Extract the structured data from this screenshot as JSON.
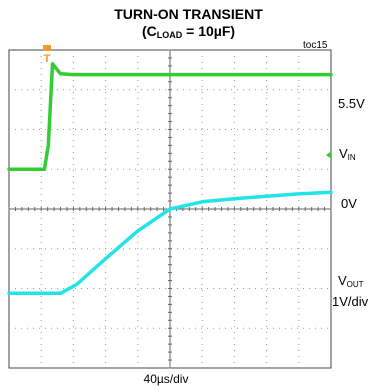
{
  "chart_data": {
    "type": "line",
    "title": "TURN-ON TRANSIENT",
    "subtitle_prefix": "(C",
    "subtitle_sub": "LOAD",
    "subtitle_suffix": " = 10µF)",
    "figure_id": "toc15",
    "time_per_div": "40µs/div",
    "x_divisions": 10,
    "y_divisions": 8,
    "grid": true,
    "trigger_marker": "T",
    "labels": {
      "vin_level": "5.5V",
      "vin_name_main": "V",
      "vin_name_sub": "IN",
      "zero_level": "0V",
      "vout_name_main": "V",
      "vout_name_sub": "OUT",
      "vout_scale": "1V/div"
    },
    "series": [
      {
        "name": "VIN",
        "color": "#33cc33",
        "x_div": [
          0,
          1.1,
          1.22,
          1.35,
          1.6,
          2.0,
          3.0,
          10
        ],
        "y_div": [
          1.0,
          1.0,
          1.6,
          3.65,
          3.4,
          3.38,
          3.38,
          3.38
        ]
      },
      {
        "name": "VOUT",
        "color": "#22e3e8",
        "x_div": [
          0,
          1.6,
          2.1,
          3.0,
          4.0,
          5.0,
          6.0,
          7.0,
          8.0,
          9.0,
          10
        ],
        "y_div": [
          -2.12,
          -2.12,
          -1.9,
          -1.25,
          -0.55,
          0.0,
          0.18,
          0.26,
          0.32,
          0.38,
          0.42
        ]
      }
    ]
  }
}
